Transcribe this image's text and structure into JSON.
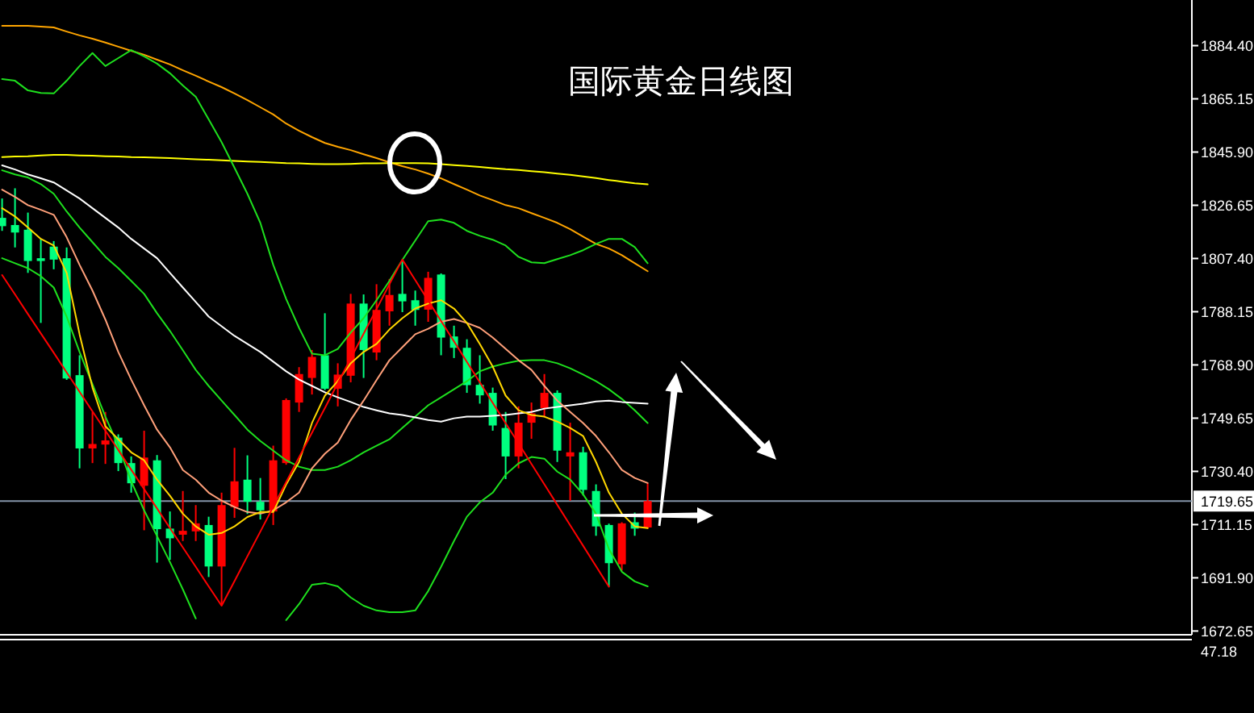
{
  "chart_data": {
    "type": "candlestick",
    "title": "国际黄金日线图",
    "categories": [
      null,
      null,
      null,
      null,
      null,
      null,
      null,
      null,
      null,
      null,
      null,
      null,
      null,
      null,
      null,
      null,
      null,
      null,
      null,
      null,
      null,
      null,
      null,
      null,
      null,
      null,
      null,
      null,
      null,
      null,
      null,
      null,
      null,
      null,
      null,
      null,
      null,
      null,
      null,
      null,
      null,
      null,
      null,
      null,
      null,
      null,
      null,
      null,
      null,
      null,
      null
    ],
    "ohlc": [
      [
        1822.1,
        1829.1,
        1817.4,
        1819.1
      ],
      [
        1819.5,
        1832.8,
        1811.4,
        1816.8
      ],
      [
        1817.8,
        1824.0,
        1802.2,
        1806.5
      ],
      [
        1807.5,
        1814.3,
        1784.1,
        1806.5
      ],
      [
        1811.7,
        1813.7,
        1803.5,
        1807.0
      ],
      [
        1807.5,
        1811.4,
        1763.5,
        1764.0
      ],
      [
        1765.2,
        1772.4,
        1731.5,
        1738.7
      ],
      [
        1738.7,
        1751.9,
        1733.4,
        1740.3
      ],
      [
        1740.1,
        1751.9,
        1733.1,
        1741.6
      ],
      [
        1742.6,
        1743.8,
        1730.5,
        1733.4
      ],
      [
        1733.4,
        1735.8,
        1722.7,
        1726.1
      ],
      [
        1725.2,
        1745.1,
        1709.1,
        1735.4
      ],
      [
        1734.4,
        1736.3,
        1697.4,
        1709.5
      ],
      [
        1709.7,
        1715.9,
        1698.4,
        1706.2
      ],
      [
        1707.5,
        1723.3,
        1705.2,
        1708.9
      ],
      [
        1708.7,
        1718.2,
        1705.2,
        1711.6
      ],
      [
        1711.0,
        1714.0,
        1692.2,
        1696.0
      ],
      [
        1696.0,
        1722.7,
        1681.8,
        1718.2
      ],
      [
        1717.5,
        1738.9,
        1713.6,
        1726.8
      ],
      [
        1727.4,
        1736.2,
        1715.0,
        1719.4
      ],
      [
        1719.4,
        1728.0,
        1713.0,
        1716.3
      ],
      [
        1715.9,
        1739.7,
        1711.0,
        1734.4
      ],
      [
        1733.4,
        1756.8,
        1732.8,
        1756.2
      ],
      [
        1755.3,
        1768.1,
        1751.9,
        1765.6
      ],
      [
        1764.2,
        1774.3,
        1758.2,
        1771.8
      ],
      [
        1772.4,
        1787.6,
        1759.8,
        1760.3
      ],
      [
        1760.3,
        1769.5,
        1753.9,
        1765.4
      ],
      [
        1765.0,
        1794.6,
        1762.6,
        1791.1
      ],
      [
        1791.1,
        1794.4,
        1764.2,
        1774.3
      ],
      [
        1773.4,
        1798.1,
        1770.6,
        1788.8
      ],
      [
        1788.3,
        1800.0,
        1783.1,
        1794.2
      ],
      [
        1794.6,
        1807.0,
        1788.0,
        1791.9
      ],
      [
        1792.3,
        1795.8,
        1783.1,
        1788.8
      ],
      [
        1788.9,
        1802.6,
        1784.5,
        1800.4
      ],
      [
        1801.6,
        1802.0,
        1772.4,
        1778.8
      ],
      [
        1779.2,
        1783.1,
        1771.4,
        1775.1
      ],
      [
        1775.1,
        1778.2,
        1758.8,
        1761.6
      ],
      [
        1761.7,
        1772.4,
        1754.9,
        1757.9
      ],
      [
        1758.8,
        1760.7,
        1745.1,
        1747.0
      ],
      [
        1746.1,
        1751.9,
        1727.6,
        1735.8
      ],
      [
        1735.8,
        1753.9,
        1731.5,
        1748.0
      ],
      [
        1748.0,
        1755.3,
        1742.2,
        1751.4
      ],
      [
        1753.3,
        1765.6,
        1750.0,
        1758.8
      ],
      [
        1758.8,
        1759.7,
        1733.8,
        1737.9
      ],
      [
        1735.8,
        1748.0,
        1719.8,
        1737.3
      ],
      [
        1737.3,
        1739.3,
        1721.7,
        1723.7
      ],
      [
        1723.3,
        1725.7,
        1707.1,
        1710.5
      ],
      [
        1711.0,
        1711.5,
        1688.7,
        1697.2
      ],
      [
        1696.8,
        1712.0,
        1694.5,
        1711.6
      ],
      [
        1712.0,
        1715.5,
        1707.1,
        1709.7
      ],
      [
        1710.1,
        1726.1,
        1709.6,
        1719.65
      ]
    ],
    "colors": [
      "#00ff7f",
      "#00ff7f",
      "#00ff7f",
      "#00ff7f",
      "#00ff7f",
      "#00ff7f",
      "#00ff7f",
      "#ff0000",
      "#ff0000",
      "#00ff7f",
      "#00ff7f",
      "#ff0000",
      "#00ff7f",
      "#00ff7f",
      "#ff0000",
      "#ff0000",
      "#00ff7f",
      "#ff0000",
      "#ff0000",
      "#00ff7f",
      "#00ff7f",
      "#ff0000",
      "#ff0000",
      "#ff0000",
      "#ff0000",
      "#00ff7f",
      "#ff0000",
      "#ff0000",
      "#00ff7f",
      "#ff0000",
      "#ff0000",
      "#00ff7f",
      "#00ff7f",
      "#ff0000",
      "#00ff7f",
      "#00ff7f",
      "#00ff7f",
      "#00ff7f",
      "#00ff7f",
      "#00ff7f",
      "#ff0000",
      "#ff0000",
      "#ff0000",
      "#00ff7f",
      "#ff0000",
      "#00ff7f",
      "#00ff7f",
      "#00ff7f",
      "#ff0000",
      "#00ff7f",
      "#ff0000"
    ],
    "series": [
      {
        "type": "line",
        "color": "#ffa500",
        "values": [
          1891.6,
          1891.6,
          1891.6,
          1891.3,
          1891.0,
          1889.5,
          1888.1,
          1886.9,
          1885.5,
          1884.0,
          1882.5,
          1881.1,
          1879.3,
          1877.6,
          1875.5,
          1873.5,
          1871.4,
          1869.4,
          1867.1,
          1864.7,
          1862.1,
          1859.5,
          1856.2,
          1853.6,
          1851.3,
          1849.2,
          1847.8,
          1846.6,
          1845.1,
          1843.7,
          1842.2,
          1840.8,
          1839.6,
          1838.1,
          1836.4,
          1834.3,
          1832.3,
          1830.2,
          1828.5,
          1826.7,
          1825.6,
          1823.8,
          1822.1,
          1820.3,
          1818.0,
          1815.3,
          1812.7,
          1811.0,
          1808.6,
          1805.7,
          1802.8
        ]
      },
      {
        "type": "line",
        "color": "#ffff00",
        "values": [
          1844.1,
          1844.3,
          1844.4,
          1844.7,
          1844.9,
          1844.9,
          1844.7,
          1844.6,
          1844.4,
          1844.3,
          1844.1,
          1844.0,
          1843.9,
          1843.7,
          1843.5,
          1843.3,
          1843.1,
          1842.9,
          1842.7,
          1842.5,
          1842.3,
          1842.1,
          1841.9,
          1841.8,
          1841.6,
          1841.5,
          1841.5,
          1841.6,
          1841.8,
          1841.8,
          1841.9,
          1841.9,
          1841.9,
          1841.8,
          1841.5,
          1841.2,
          1840.9,
          1840.5,
          1840.1,
          1839.7,
          1839.4,
          1839.0,
          1838.6,
          1838.1,
          1837.7,
          1837.1,
          1836.5,
          1835.8,
          1835.2,
          1834.6,
          1834.2
        ]
      },
      {
        "type": "line",
        "color": "#1ee01e",
        "values": [
          1872.3,
          1871.7,
          1868.2,
          1867.3,
          1867.1,
          1871.7,
          1877.0,
          1881.7,
          1877.0,
          1879.9,
          1882.8,
          1880.5,
          1877.9,
          1874.4,
          1870.0,
          1865.9,
          1857.7,
          1849.5,
          1840.2,
          1830.8,
          1820.3,
          1805.1,
          1792.8,
          1782.3,
          1773.0,
          1772.4,
          1774.7,
          1780.6,
          1785.8,
          1792.3,
          1799.3,
          1806.9,
          1813.9,
          1820.9,
          1821.5,
          1820.3,
          1817.4,
          1815.6,
          1814.2,
          1812.1,
          1808.0,
          1806.0,
          1805.7,
          1807.2,
          1808.6,
          1810.4,
          1812.7,
          1814.5,
          1814.5,
          1811.5,
          1805.7
        ]
      },
      {
        "type": "line",
        "color": "#1ee01e",
        "values": [
          1839.3,
          1837.8,
          1836.7,
          1834.3,
          1830.8,
          1824.4,
          1818.6,
          1813.3,
          1808.0,
          1803.9,
          1799.3,
          1794.6,
          1787.6,
          1781.2,
          1774.2,
          1767.1,
          1761.3,
          1756.0,
          1750.8,
          1745.5,
          1741.4,
          1737.9,
          1734.4,
          1732.1,
          1730.9,
          1730.9,
          1732.1,
          1734.4,
          1737.3,
          1739.7,
          1742.0,
          1746.1,
          1750.2,
          1754.3,
          1757.2,
          1760.1,
          1763.0,
          1766.6,
          1768.3,
          1769.5,
          1770.4,
          1770.6,
          1770.6,
          1769.5,
          1767.7,
          1765.4,
          1763.0,
          1760.1,
          1756.6,
          1752.5,
          1747.9
        ]
      },
      {
        "type": "line",
        "color": "#1ee01e",
        "values": [
          1807.5,
          1805.7,
          1803.9,
          1801.0,
          1796.9,
          1786.4,
          1773.6,
          1761.9,
          1750.2,
          1739.7,
          1726.8,
          1716.3,
          1707.0,
          1697.6,
          1687.7,
          1677.2,
          null,
          null,
          null,
          null,
          null,
          null,
          1676.6,
          1682.4,
          1689.4,
          1690.0,
          1688.8,
          1684.8,
          1681.8,
          1680.1,
          1679.5,
          1679.5,
          1680.1,
          1687.1,
          1695.9,
          1705.2,
          1714.0,
          1719.2,
          1722.7,
          1729.2,
          1733.3,
          1735.6,
          1735.0,
          1730.3,
          1727.4,
          1722.1,
          1715.1,
          1702.3,
          1694.1,
          1690.6,
          1688.8
        ]
      },
      {
        "type": "line",
        "color": "#ffffff",
        "values": [
          1841.1,
          1839.6,
          1837.8,
          1836.4,
          1834.9,
          1832.0,
          1829.1,
          1825.6,
          1822.1,
          1818.6,
          1814.5,
          1811.0,
          1807.5,
          1802.2,
          1796.9,
          1791.7,
          1786.4,
          1782.9,
          1779.4,
          1776.5,
          1773.6,
          1770.1,
          1766.6,
          1763.6,
          1761.3,
          1759.0,
          1757.2,
          1755.5,
          1753.7,
          1752.5,
          1751.4,
          1750.8,
          1749.9,
          1749.0,
          1748.4,
          1749.6,
          1750.2,
          1750.2,
          1750.5,
          1750.8,
          1751.4,
          1751.9,
          1753.1,
          1753.7,
          1754.3,
          1754.9,
          1755.7,
          1756.0,
          1755.5,
          1755.2,
          1754.9
        ]
      },
      {
        "type": "line",
        "color": "#ffa07a",
        "values": [
          1832.3,
          1829.7,
          1826.7,
          1825.0,
          1823.2,
          1815.1,
          1805.1,
          1795.8,
          1785.3,
          1773.6,
          1763.6,
          1754.3,
          1745.5,
          1739.1,
          1730.9,
          1727.4,
          1722.7,
          1719.8,
          1717.5,
          1715.7,
          1715.1,
          1716.3,
          1719.2,
          1722.7,
          1731.5,
          1736.8,
          1740.8,
          1749.0,
          1756.0,
          1763.4,
          1770.6,
          1775.3,
          1780.0,
          1782.0,
          1784.5,
          1785.5,
          1784.1,
          1782.3,
          1778.8,
          1774.7,
          1770.6,
          1767.1,
          1761.3,
          1756.0,
          1751.9,
          1747.9,
          1743.2,
          1737.3,
          1730.9,
          1728.0,
          1726.2
        ]
      },
      {
        "type": "line",
        "color": "#ffd700",
        "values": [
          1825.6,
          1822.6,
          1818.6,
          1814.5,
          1812.1,
          1802.2,
          1780.0,
          1760.7,
          1746.7,
          1742.0,
          1737.3,
          1734.4,
          1727.4,
          1721.6,
          1715.1,
          1710.5,
          1707.5,
          1708.1,
          1710.5,
          1713.9,
          1715.7,
          1715.7,
          1725.6,
          1733.8,
          1747.9,
          1757.8,
          1763.0,
          1769.5,
          1773.6,
          1776.5,
          1781.7,
          1785.8,
          1789.3,
          1791.1,
          1792.3,
          1789.3,
          1784.1,
          1776.5,
          1768.3,
          1757.8,
          1752.5,
          1750.8,
          1750.2,
          1748.4,
          1746.1,
          1743.2,
          1733.8,
          1722.7,
          1715.1,
          1710.5,
          1709.9
        ]
      },
      {
        "type": "line",
        "color": "#ff0000",
        "values": [
          1801.4,
          1794.4,
          1787.3,
          1780.3,
          1773.3,
          1766.2,
          1759.2,
          1752.1,
          1745.1,
          1738.1,
          1731.0,
          1724.0,
          1717.0,
          1709.9,
          1702.9,
          1695.9,
          1688.8,
          1681.8,
          1690.7,
          1699.7,
          1708.6,
          1717.6,
          1726.5,
          1735.5,
          1744.4,
          1753.3,
          1762.3,
          1771.2,
          1780.2,
          1789.1,
          1798.1,
          1807.0,
          1799.6,
          1792.2,
          1784.8,
          1777.4,
          1770.0,
          1762.6,
          1755.2,
          1747.8,
          1740.5,
          1733.1,
          1725.7,
          1718.3,
          1710.9,
          1703.5,
          1696.1,
          1688.7,
          null,
          null,
          null
        ]
      }
    ],
    "ylim": [
      1671.3,
      1900.9
    ],
    "yticks": [
      {
        "value": 1884.4,
        "label": "1884.40"
      },
      1865.15,
      {
        "value": 1845.9,
        "label": "1845.90"
      },
      1826.65,
      {
        "value": 1807.4,
        "label": "1807.40"
      },
      1788.15,
      {
        "value": 1768.9,
        "label": "1768.90"
      },
      1749.65,
      {
        "value": 1730.4,
        "label": "1730.40"
      },
      1711.15,
      {
        "value": 1691.9,
        "label": "1691.90"
      },
      1672.65
    ],
    "tick_labels": "y",
    "ref_lines": [
      {
        "axis": "y",
        "value": 1719.65,
        "label": "1719.65",
        "color": "#8494a8"
      }
    ],
    "annotations": [
      "47.18"
    ]
  }
}
